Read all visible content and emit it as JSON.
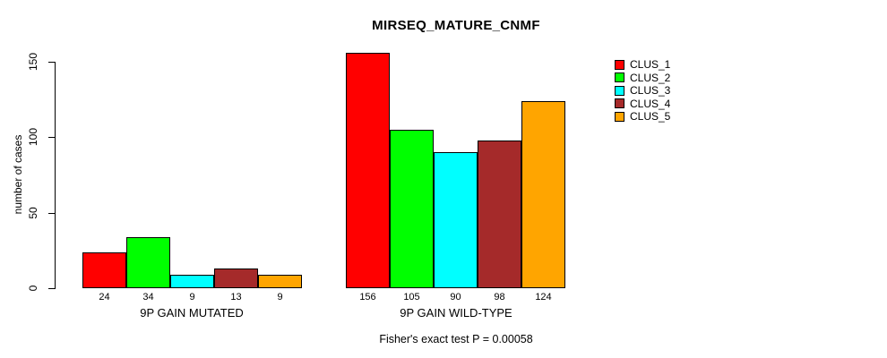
{
  "page": {
    "background": "#FFFFFF"
  },
  "chart_data": {
    "type": "bar",
    "title": "MIRSEQ_MATURE_CNMF",
    "ylabel": "number of cases",
    "xlabel": "",
    "ylim": [
      0,
      150
    ],
    "yticks": [
      0,
      50,
      100,
      150
    ],
    "grid": false,
    "legend_position": "top-right",
    "categories": [
      "9P GAIN MUTATED",
      "9P GAIN WILD-TYPE"
    ],
    "series": [
      {
        "name": "CLUS_1",
        "color": "#FF0000",
        "values": [
          24,
          156
        ]
      },
      {
        "name": "CLUS_2",
        "color": "#00FF00",
        "values": [
          34,
          105
        ]
      },
      {
        "name": "CLUS_3",
        "color": "#00FFFF",
        "values": [
          9,
          90
        ]
      },
      {
        "name": "CLUS_4",
        "color": "#A52A2A",
        "values": [
          13,
          98
        ]
      },
      {
        "name": "CLUS_5",
        "color": "#FFA500",
        "values": [
          9,
          124
        ]
      }
    ],
    "bar_value_labels": [
      [
        "24",
        "34",
        "9",
        "13",
        "9"
      ],
      [
        "156",
        "105",
        "90",
        "98",
        "124"
      ]
    ],
    "caption": "Fisher's exact test P = 0.00058"
  }
}
